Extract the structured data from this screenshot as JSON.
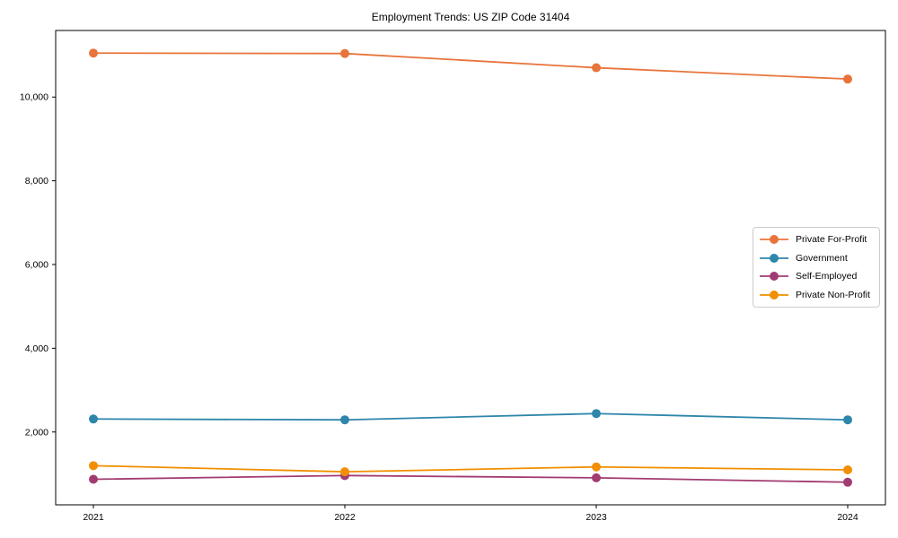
{
  "page": {
    "title": "Employment Trends: US ZIP Code 31404"
  },
  "chart_data": {
    "type": "line",
    "title": "Employment Trends: US ZIP Code 31404",
    "categories": [
      "2021",
      "2022",
      "2023",
      "2024"
    ],
    "series": [
      {
        "name": "Private For-Profit",
        "color": "#E8743B",
        "values": [
          11050,
          11040,
          10700,
          10430
        ]
      },
      {
        "name": "Government",
        "color": "#2E86AB",
        "values": [
          2310,
          2290,
          2440,
          2290
        ]
      },
      {
        "name": "Self-Employed",
        "color": "#A23B72",
        "values": [
          870,
          960,
          905,
          800
        ]
      },
      {
        "name": "Private Non-Profit",
        "color": "#F18F01",
        "values": [
          1195,
          1050,
          1165,
          1095
        ]
      }
    ],
    "xlabel": "",
    "ylabel": "",
    "xlim": [
      -0.15,
      3.15
    ],
    "ylim": [
      260,
      11590
    ],
    "yticks": [
      2000,
      4000,
      6000,
      8000,
      10000
    ],
    "ytick_labels": [
      "2,000",
      "4,000",
      "6,000",
      "8,000",
      "10,000"
    ],
    "grid": false,
    "marker": "o",
    "marker_radius": 5,
    "line_width": 1.8,
    "legend_position": "center right",
    "axis_color": "#000000",
    "legend_border_color": "#cccccc"
  }
}
